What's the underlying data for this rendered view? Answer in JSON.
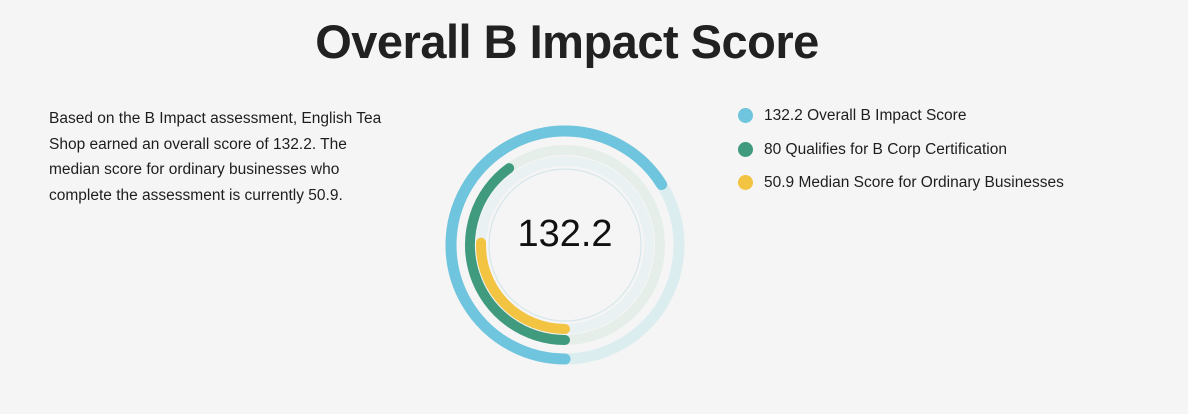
{
  "header": {
    "title": "Overall B Impact Score"
  },
  "description": "Based on the B Impact assessment, English Tea Shop earned an overall score of 132.2. The median score for ordinary businesses who complete the assessment is currently 50.9.",
  "chart_data": {
    "type": "radial-bar",
    "center_label": "132.2",
    "max_value": 200,
    "series": [
      {
        "value": 132.2,
        "label": "132.2 Overall B Impact Score",
        "color": "#6fc4de",
        "track_color": "#dcedf0"
      },
      {
        "value": 80,
        "label": "80 Qualifies for B Corp Certification",
        "color": "#3f9a7e",
        "track_color": "#e6eeea"
      },
      {
        "value": 50.9,
        "label": "50.9 Median Score for Ordinary Businesses",
        "color": "#f2c442",
        "track_color": "#eaf1f2"
      }
    ]
  }
}
